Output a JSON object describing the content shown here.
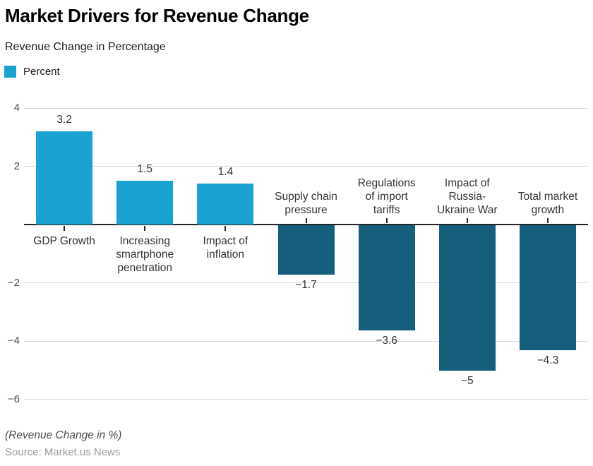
{
  "chart_data": {
    "type": "bar",
    "title": "Market Drivers for Revenue Change",
    "subtitle": "Revenue Change in Percentage",
    "legend": [
      {
        "label": "Percent",
        "color": "#1aa2d0"
      }
    ],
    "categories": [
      "GDP Growth",
      "Increasing smartphone penetration",
      "Impact of inflation",
      "Supply chain pressure",
      "Regulations of import tariffs",
      "Impact of Russia-Ukraine War",
      "Total market growth"
    ],
    "category_lines": [
      [
        "GDP Growth"
      ],
      [
        "Increasing",
        "smartphone",
        "penetration"
      ],
      [
        "Impact of",
        "inflation"
      ],
      [
        "Supply chain",
        "pressure"
      ],
      [
        "Regulations",
        "of import",
        "tariffs"
      ],
      [
        "Impact of",
        "Russia-",
        "Ukraine War"
      ],
      [
        "Total market",
        "growth"
      ]
    ],
    "series_name": "Percent",
    "values": [
      3.2,
      1.5,
      1.4,
      -1.7,
      -3.6,
      -5,
      -4.3
    ],
    "value_labels": [
      "3.2",
      "1.5",
      "1.4",
      "−1.7",
      "−3.6",
      "−5",
      "−4.3"
    ],
    "y_ticks": [
      {
        "value": 4,
        "label": "4"
      },
      {
        "value": 2,
        "label": "2"
      },
      {
        "value": -2,
        "label": "−2"
      },
      {
        "value": -4,
        "label": "−4"
      },
      {
        "value": -6,
        "label": "−6"
      }
    ],
    "ylim": [
      -6.6,
      4.6
    ],
    "grid": true,
    "legend_position": "top-left",
    "colors": {
      "positive": "#1aa2d0",
      "negative": "#155f7d"
    },
    "axis_note": "(Revenue Change in %)",
    "source": "Source: Market.us News"
  }
}
